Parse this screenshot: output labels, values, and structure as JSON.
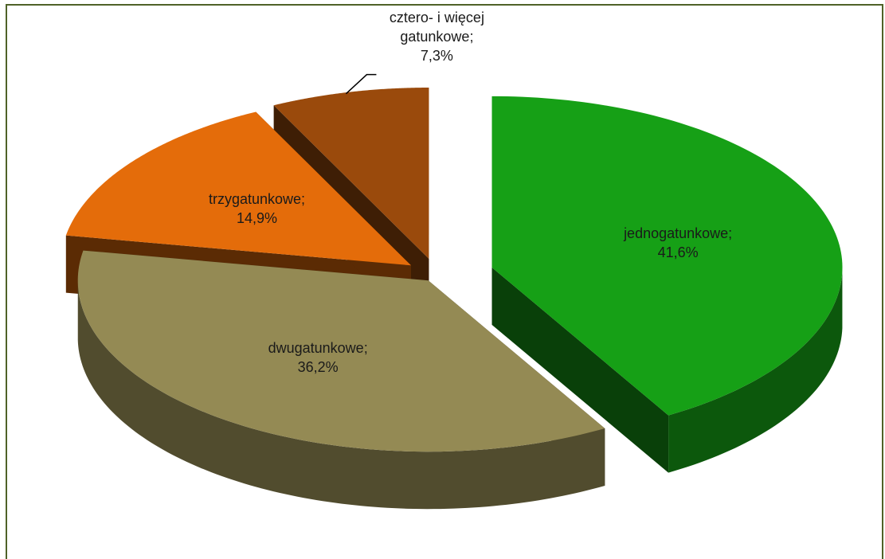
{
  "chart_data": {
    "type": "pie",
    "categories": [
      "jednogatunkowe;",
      "dwugatunkowe;",
      "trzygatunkowe;",
      "cztero- i więcej gatunkowe;"
    ],
    "values": [
      41.6,
      36.2,
      14.9,
      7.3
    ],
    "value_labels": [
      "41,6%",
      "36,2%",
      "14,9%",
      "7,3%"
    ],
    "colors": [
      "#16a016",
      "#948a54",
      "#e46c0a",
      "#9a4a0c"
    ]
  }
}
